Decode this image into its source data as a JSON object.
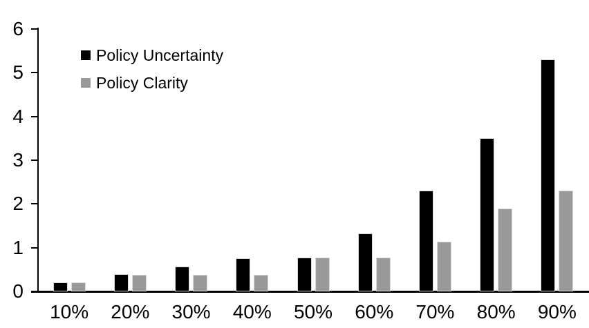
{
  "chart_data": {
    "type": "bar",
    "title": "",
    "categories": [
      "10%",
      "20%",
      "30%",
      "40%",
      "50%",
      "60%",
      "70%",
      "80%",
      "90%"
    ],
    "series": [
      {
        "name": "Policy Uncertainty",
        "color": "#000000",
        "values": [
          0.2,
          0.4,
          0.57,
          0.76,
          0.78,
          1.33,
          2.3,
          3.5,
          5.3
        ]
      },
      {
        "name": "Policy Clarity",
        "color": "#999999",
        "values": [
          0.2,
          0.38,
          0.38,
          0.38,
          0.77,
          0.77,
          1.13,
          1.9,
          2.3
        ]
      }
    ],
    "xlabel": "",
    "ylabel": "",
    "ylim": [
      0,
      6
    ],
    "yticks": [
      0,
      1,
      2,
      3,
      4,
      5,
      6
    ],
    "grid": false,
    "legend_position": "upper-left-inside",
    "axis_color": "#000000",
    "background": "#ffffff"
  }
}
